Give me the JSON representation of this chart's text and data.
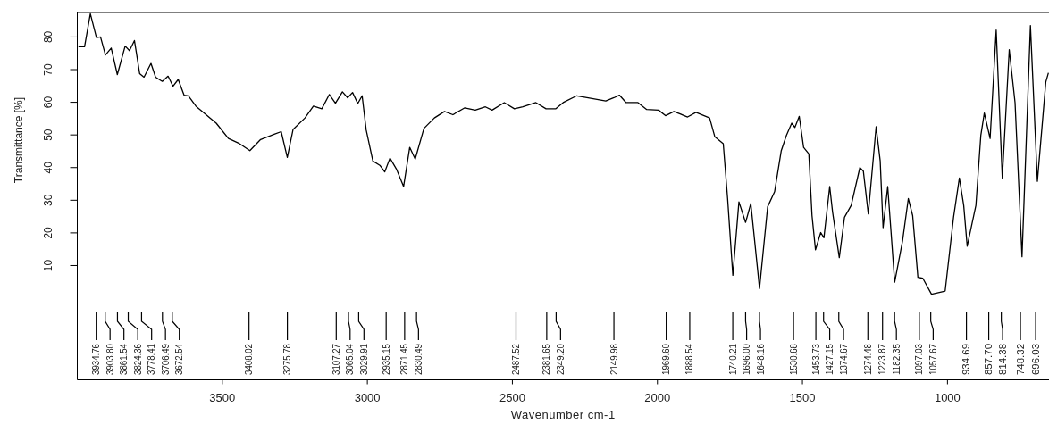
{
  "chart_data": {
    "type": "line",
    "xlabel": "Wavenumber cm-1",
    "ylabel": "Transmittance [%]",
    "xlim": [
      4000,
      650
    ],
    "xticks": [
      3500,
      3000,
      2500,
      2000,
      1500,
      1000
    ],
    "ylim": [
      -25,
      87.5
    ],
    "yticks": [
      10,
      20,
      30,
      40,
      50,
      60,
      70,
      80
    ],
    "grid": false,
    "series": [
      {
        "color": "#000000",
        "x": [
          3996,
          3975,
          3955,
          3934,
          3920,
          3903,
          3883,
          3862,
          3835,
          3820,
          3803,
          3785,
          3770,
          3746,
          3730,
          3707,
          3687,
          3670,
          3652,
          3632,
          3617,
          3591,
          3556,
          3521,
          3479,
          3444,
          3405,
          3368,
          3321,
          3297,
          3276,
          3256,
          3215,
          3186,
          3157,
          3131,
          3110,
          3086,
          3068,
          3051,
          3033,
          3018,
          3004,
          2981,
          2957,
          2940,
          2922,
          2899,
          2875,
          2854,
          2835,
          2805,
          2769,
          2734,
          2705,
          2664,
          2628,
          2593,
          2570,
          2528,
          2493,
          2464,
          2419,
          2384,
          2351,
          2325,
          2278,
          2243,
          2178,
          2150,
          2131,
          2108,
          2067,
          2037,
          1996,
          1972,
          1943,
          1896,
          1867,
          1820,
          1802,
          1773,
          1758,
          1740,
          1719,
          1696,
          1678,
          1648,
          1620,
          1596,
          1573,
          1555,
          1537,
          1526,
          1511,
          1496,
          1478,
          1467,
          1455,
          1437,
          1426,
          1406,
          1396,
          1373,
          1355,
          1332,
          1302,
          1290,
          1273,
          1246,
          1232,
          1222,
          1206,
          1182,
          1155,
          1135,
          1120,
          1102,
          1085,
          1055,
          1008,
          979,
          959,
          944,
          932,
          902,
          885,
          873,
          853,
          832,
          811,
          787,
          767,
          743,
          714,
          690,
          661,
          652
        ],
        "values": [
          77,
          77,
          87.1,
          79.8,
          80,
          74.5,
          76.6,
          68.5,
          77.2,
          75.8,
          78.9,
          68.8,
          67.7,
          71.9,
          67.7,
          66.4,
          68,
          64.9,
          67,
          62.2,
          62,
          58.8,
          56.2,
          53.6,
          48.9,
          47.5,
          45.2,
          48.6,
          50.2,
          51,
          43.1,
          51.7,
          55.2,
          58.8,
          58,
          62.4,
          59.7,
          63.2,
          61.4,
          63,
          59.6,
          62,
          51.5,
          42,
          40.7,
          38.7,
          42.9,
          39.4,
          34.2,
          46.2,
          42.6,
          52,
          55.2,
          57.2,
          56.2,
          58.3,
          57.6,
          58.6,
          57.6,
          59.9,
          58,
          58.6,
          59.9,
          58,
          58,
          59.9,
          62,
          61.4,
          60.4,
          61.4,
          62.2,
          59.9,
          59.9,
          57.8,
          57.6,
          55.9,
          57.2,
          55.5,
          56.9,
          55.2,
          49.4,
          47.3,
          30.5,
          7,
          29.5,
          23.2,
          29,
          3,
          28,
          32.6,
          45.2,
          49.9,
          53.6,
          52.3,
          55.7,
          46.2,
          44.2,
          25.3,
          14.8,
          20.1,
          18.5,
          34.2,
          26.3,
          12.4,
          24.8,
          28.4,
          40,
          38.9,
          25.8,
          52.5,
          42.1,
          21.6,
          34.2,
          4.9,
          17.5,
          30.5,
          25.3,
          6.4,
          6.1,
          1.2,
          2.2,
          24.8,
          36.8,
          28.4,
          15.9,
          28.4,
          49.9,
          56.7,
          48.9,
          82.1,
          36.8,
          76.1,
          59.9,
          12.7,
          83.5,
          35.8,
          66.2,
          69
        ]
      }
    ],
    "annotations": [
      {
        "text": "3934.76",
        "x": 3934.76
      },
      {
        "text": "3903.80",
        "x": 3903.8
      },
      {
        "text": "3861.54",
        "x": 3861.54
      },
      {
        "text": "3824.36",
        "x": 3824.36
      },
      {
        "text": "3778.41",
        "x": 3778.41
      },
      {
        "text": "3706.49",
        "x": 3706.49
      },
      {
        "text": "3672.54",
        "x": 3672.54
      },
      {
        "text": "3408.02",
        "x": 3408.02
      },
      {
        "text": "3275.78",
        "x": 3275.78
      },
      {
        "text": "3107.27",
        "x": 3107.27
      },
      {
        "text": "3065.04",
        "x": 3065.04
      },
      {
        "text": "3029.91",
        "x": 3029.91
      },
      {
        "text": "2935.15",
        "x": 2935.15
      },
      {
        "text": "2871.45",
        "x": 2871.45
      },
      {
        "text": "2830.49",
        "x": 2830.49
      },
      {
        "text": "2487.52",
        "x": 2487.52
      },
      {
        "text": "2381.65",
        "x": 2381.65
      },
      {
        "text": "2349.20",
        "x": 2349.2
      },
      {
        "text": "2149.98",
        "x": 2149.98
      },
      {
        "text": "1969.60",
        "x": 1969.6
      },
      {
        "text": "1888.54",
        "x": 1888.54
      },
      {
        "text": "1740.21",
        "x": 1740.21
      },
      {
        "text": "1696.00",
        "x": 1696.0
      },
      {
        "text": "1648.16",
        "x": 1648.16
      },
      {
        "text": "1530.68",
        "x": 1530.68
      },
      {
        "text": "1453.73",
        "x": 1453.73
      },
      {
        "text": "1427.15",
        "x": 1427.15
      },
      {
        "text": "1374.67",
        "x": 1374.67
      },
      {
        "text": "1274.48",
        "x": 1274.48
      },
      {
        "text": "1223.87",
        "x": 1223.87
      },
      {
        "text": "1182.35",
        "x": 1182.35
      },
      {
        "text": "1097.03",
        "x": 1097.03
      },
      {
        "text": "1057.67",
        "x": 1057.67
      },
      {
        "text": "934.69",
        "x": 934.69
      },
      {
        "text": "857.70",
        "x": 857.7
      },
      {
        "text": "814.38",
        "x": 814.38
      },
      {
        "text": "748.32",
        "x": 748.32
      },
      {
        "text": "696.03",
        "x": 696.03
      }
    ]
  }
}
